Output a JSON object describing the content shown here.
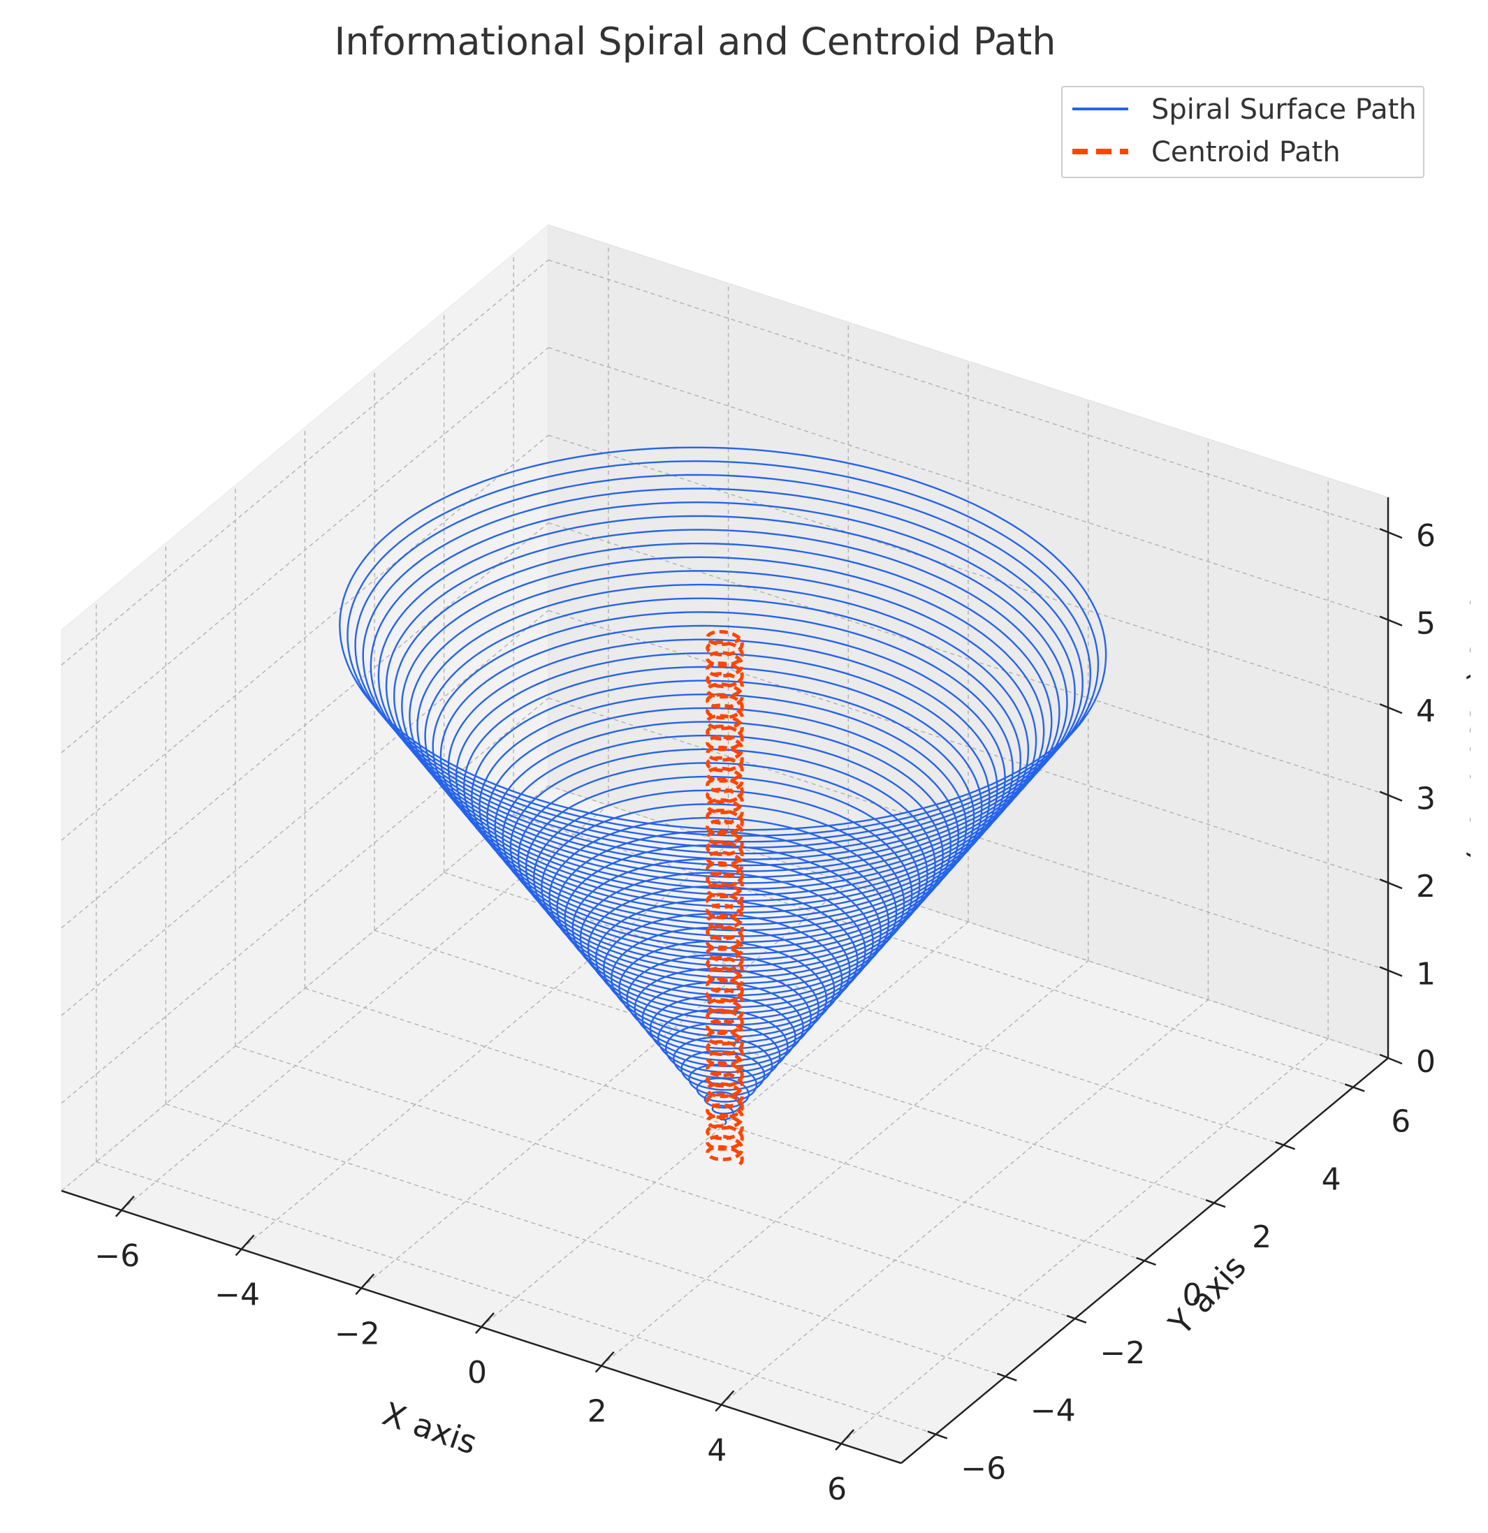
{
  "chart_data": {
    "type": "line",
    "projection": "3d",
    "title": "Informational Spiral and Centroid Path",
    "xlabel": "X axis",
    "ylabel": "Y axis",
    "zlabel": "Z axis (Resolution)",
    "xlim": [
      -7,
      7
    ],
    "ylim": [
      -7,
      7
    ],
    "zlim": [
      0,
      6.4
    ],
    "xticks": [
      "−6",
      "−4",
      "−2",
      "0",
      "2",
      "4",
      "6"
    ],
    "yticks": [
      "−6",
      "−4",
      "−2",
      "0",
      "2",
      "4",
      "6"
    ],
    "zticks": [
      "0",
      "1",
      "2",
      "3",
      "4",
      "5",
      "6"
    ],
    "grid": true,
    "legend_position": "top-right",
    "series": [
      {
        "name": "Spiral Surface Path",
        "color": "#2563eb",
        "style": "solid",
        "shape": "conical spiral",
        "radius_equals_z": true,
        "z_range": [
          0,
          5.6
        ],
        "turns": 50
      },
      {
        "name": "Centroid Path",
        "color": "#ff4500",
        "style": "dashed",
        "shape": "narrow helix along z axis",
        "center": [
          0,
          0
        ],
        "radius": 0.25,
        "z_range": [
          -0.4,
          5.6
        ],
        "turns": 50
      }
    ]
  }
}
